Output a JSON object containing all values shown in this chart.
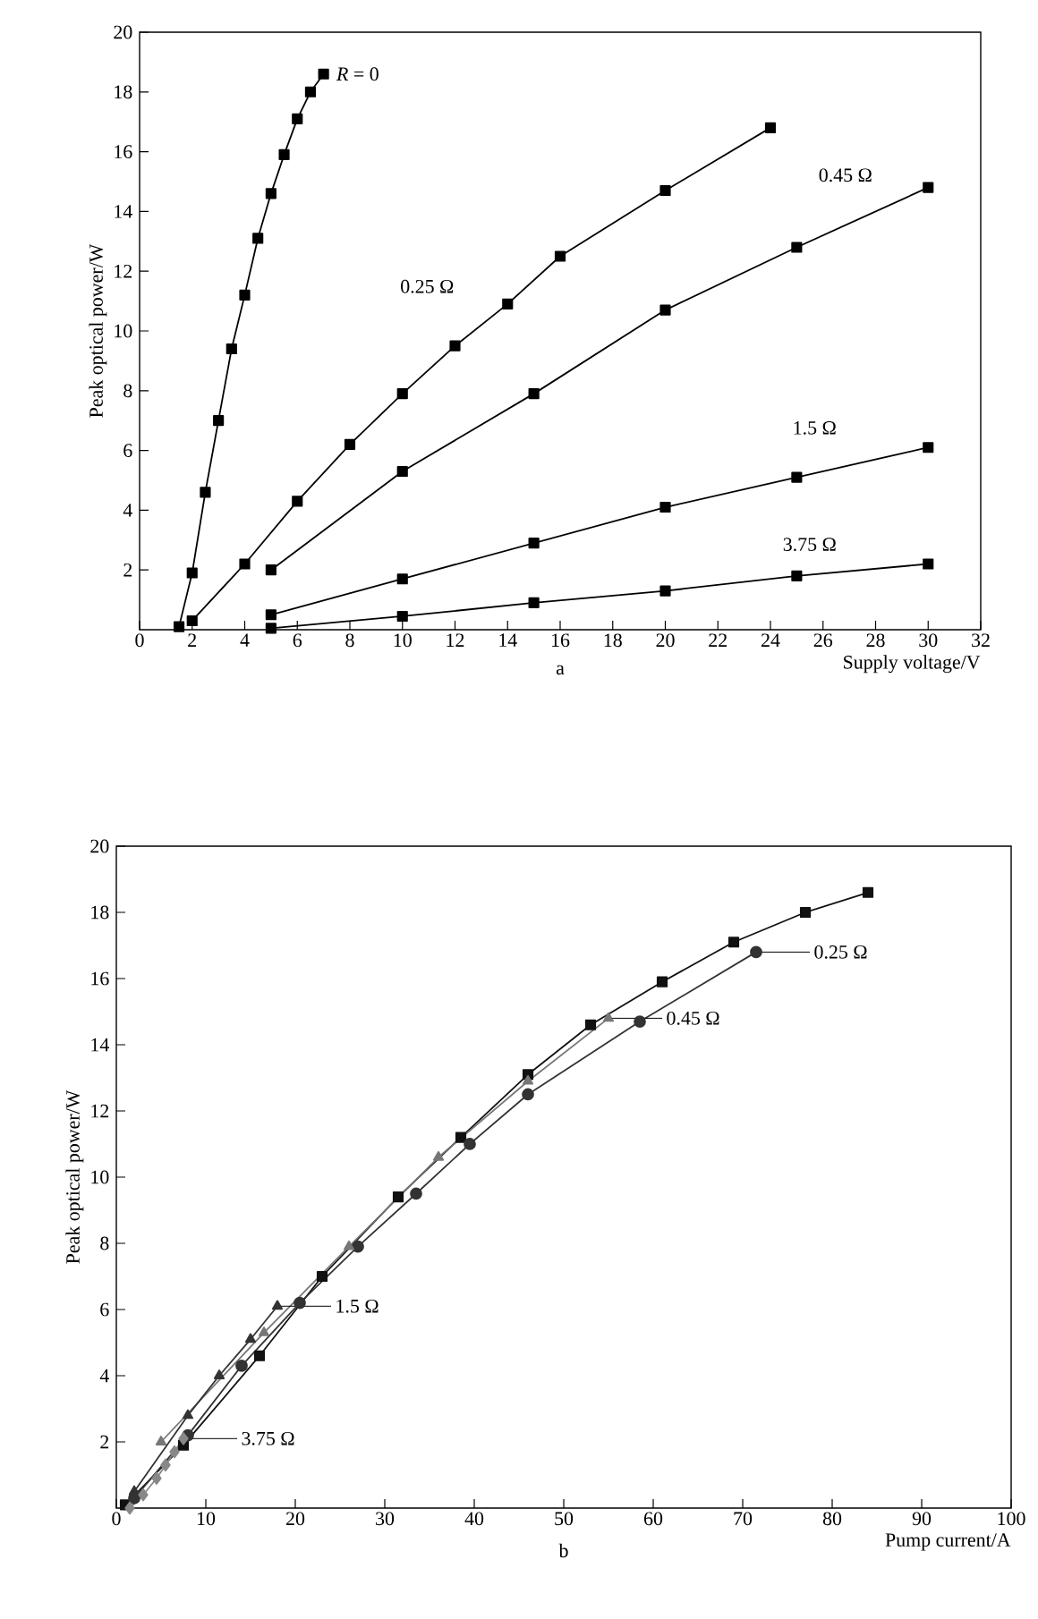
{
  "chart_data": [
    {
      "type": "line",
      "xlabel": "Supply voltage/V",
      "ylabel": "Peak optical power/W",
      "xlim": [
        0,
        32
      ],
      "ylim": [
        0,
        20
      ],
      "xticks": [
        0,
        2,
        4,
        6,
        8,
        10,
        12,
        14,
        16,
        18,
        20,
        22,
        24,
        26,
        28,
        30,
        32
      ],
      "yticks": [
        2,
        4,
        6,
        8,
        10,
        12,
        14,
        16,
        18,
        20
      ],
      "marker": "square",
      "line_style": "solid",
      "grid": false,
      "annotations": [
        "a"
      ],
      "series": [
        {
          "name": "*R* = 0",
          "color": "#000000",
          "x": [
            1.5,
            2,
            2.5,
            3,
            3.5,
            4,
            4.5,
            5,
            5.5,
            6,
            6.5,
            7
          ],
          "values": [
            0.1,
            1.9,
            4.6,
            7.0,
            9.4,
            11.2,
            13.1,
            14.6,
            15.9,
            17.1,
            18.0,
            18.6
          ]
        },
        {
          "name": "0.25 Ω",
          "color": "#000000",
          "x": [
            2,
            4,
            6,
            8,
            10,
            12,
            14,
            16,
            20,
            24
          ],
          "values": [
            0.3,
            2.2,
            4.3,
            6.2,
            7.9,
            9.5,
            10.9,
            12.5,
            14.7,
            16.8
          ]
        },
        {
          "name": "0.45 Ω",
          "color": "#000000",
          "x": [
            5,
            10,
            15,
            20,
            25,
            30
          ],
          "values": [
            2.0,
            5.3,
            7.9,
            10.7,
            12.8,
            14.8
          ]
        },
        {
          "name": "1.5 Ω",
          "color": "#000000",
          "x": [
            5,
            10,
            15,
            20,
            25,
            30
          ],
          "values": [
            0.5,
            1.7,
            2.9,
            4.1,
            5.1,
            6.1
          ]
        },
        {
          "name": "3.75 Ω",
          "color": "#000000",
          "x": [
            5,
            10,
            15,
            20,
            25,
            30
          ],
          "values": [
            0.05,
            0.45,
            0.9,
            1.3,
            1.8,
            2.2
          ]
        }
      ]
    },
    {
      "type": "line",
      "xlabel": "Pump current/A",
      "ylabel": "Peak optical power/W",
      "xlim": [
        0,
        100
      ],
      "ylim": [
        0,
        20
      ],
      "xticks": [
        0,
        10,
        20,
        30,
        40,
        50,
        60,
        70,
        80,
        90,
        100
      ],
      "yticks": [
        2,
        4,
        6,
        8,
        10,
        12,
        14,
        16,
        18,
        20
      ],
      "line_style": "solid",
      "grid": false,
      "annotations": [
        "b"
      ],
      "series": [
        {
          "color": "#111111",
          "marker": "square",
          "x": [
            1,
            7.5,
            16,
            23,
            31.5,
            38.5,
            46,
            53,
            61,
            69,
            77,
            84
          ],
          "values": [
            0.1,
            1.9,
            4.6,
            7.0,
            9.4,
            11.2,
            13.1,
            14.6,
            15.9,
            17.1,
            18.0,
            18.6
          ]
        },
        {
          "name": "0.25 Ω",
          "color": "#333333",
          "marker": "circle",
          "x": [
            2,
            8,
            14,
            20.5,
            27,
            33.5,
            39.5,
            46,
            58.5,
            71.5
          ],
          "values": [
            0.3,
            2.2,
            4.3,
            6.2,
            7.9,
            9.5,
            11.0,
            12.5,
            14.7,
            16.8
          ]
        },
        {
          "name": "0.45 Ω",
          "color": "#777777",
          "marker": "triangle",
          "x": [
            5,
            16.5,
            26,
            36,
            46,
            55
          ],
          "values": [
            2.0,
            5.3,
            7.9,
            10.6,
            12.9,
            14.8
          ]
        },
        {
          "name": "1.5 Ω",
          "color": "#333333",
          "marker": "triangle",
          "x": [
            2,
            8,
            11.5,
            15,
            18
          ],
          "values": [
            0.5,
            2.8,
            4.0,
            5.1,
            6.1
          ]
        },
        {
          "name": "3.75 Ω",
          "color": "#888888",
          "marker": "diamond",
          "x": [
            1.5,
            3,
            4.5,
            5.5,
            6.5,
            7.5
          ],
          "values": [
            0.0,
            0.4,
            0.9,
            1.3,
            1.7,
            2.1
          ]
        }
      ]
    }
  ]
}
